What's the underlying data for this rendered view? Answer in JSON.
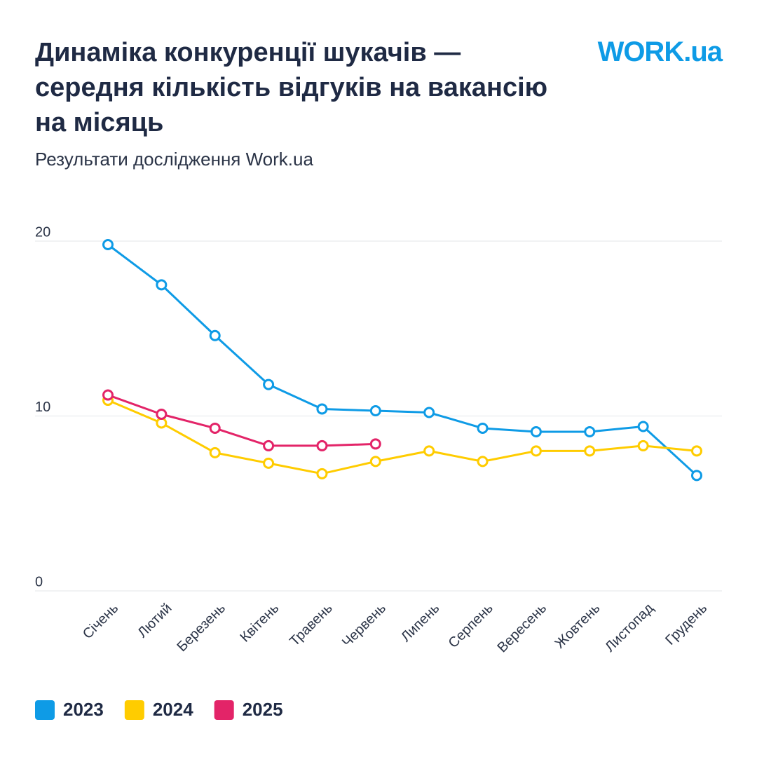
{
  "chart_data": {
    "type": "line",
    "title": "Динаміка конкуренції шукачів — середня кількість відгуків на вакансію на місяць",
    "subtitle": "Результати дослідження Work.ua",
    "logo": "WORK.ua",
    "categories": [
      "Січень",
      "Лютий",
      "Березень",
      "Квітень",
      "Травень",
      "Червень",
      "Липень",
      "Серпень",
      "Вересень",
      "Жовтень",
      "Листопад",
      "Грудень"
    ],
    "series": [
      {
        "name": "2023",
        "color": "#0e9be6",
        "values": [
          19.8,
          17.5,
          14.6,
          11.8,
          10.4,
          10.3,
          10.2,
          9.3,
          9.1,
          9.1,
          9.4,
          6.6
        ]
      },
      {
        "name": "2024",
        "color": "#ffcc00",
        "values": [
          10.9,
          9.6,
          7.9,
          7.3,
          6.7,
          7.4,
          8.0,
          7.4,
          8.0,
          8.0,
          8.3,
          8.0
        ]
      },
      {
        "name": "2025",
        "color": "#e32468",
        "values": [
          11.2,
          10.1,
          9.3,
          8.3,
          8.3,
          8.4,
          null,
          null,
          null,
          null,
          null,
          null
        ]
      }
    ],
    "ylim": [
      0,
      20
    ],
    "yticks": [
      0,
      10,
      20
    ],
    "grid": true
  }
}
